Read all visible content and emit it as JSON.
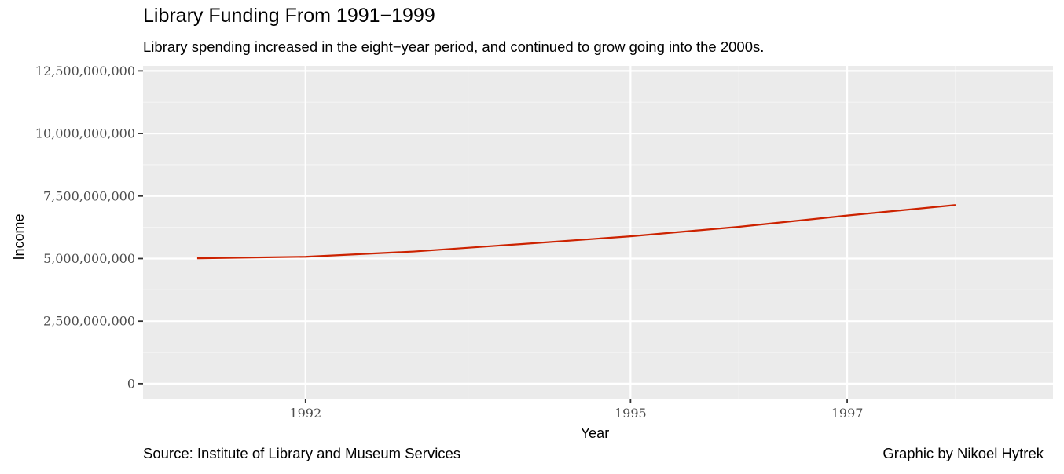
{
  "chart_data": {
    "type": "line",
    "title": "Library Funding From 1991−1999",
    "subtitle": "Library spending increased in the eight−year period, and continued to grow going into the 2000s.",
    "xlabel": "Year",
    "ylabel": "Income",
    "caption_left": "Source: Institute of Library and Museum Services",
    "caption_right": "Graphic by Nikoel Hytrek",
    "xlim": [
      1990.5,
      1998.9
    ],
    "ylim": [
      -600000000,
      12700000000
    ],
    "x_ticks": [
      {
        "value": 1992,
        "label": "1992"
      },
      {
        "value": 1995,
        "label": "1995"
      },
      {
        "value": 1997,
        "label": "1997"
      }
    ],
    "y_ticks": [
      {
        "value": 0,
        "label": "0"
      },
      {
        "value": 2500000000,
        "label": "2,500,000,000"
      },
      {
        "value": 5000000000,
        "label": "5,000,000,000"
      },
      {
        "value": 7500000000,
        "label": "7,500,000,000"
      },
      {
        "value": 10000000000,
        "label": "10,000,000,000"
      },
      {
        "value": 12500000000,
        "label": "12,500,000,000"
      }
    ],
    "series": [
      {
        "color": "#cc2200",
        "x": [
          1991,
          1992,
          1993,
          1994,
          1995,
          1996,
          1997,
          1998
        ],
        "values": [
          5010000000,
          5070000000,
          5280000000,
          5580000000,
          5890000000,
          6270000000,
          6720000000,
          7140000000
        ]
      }
    ],
    "panel_background": "#ebebeb",
    "grid": true,
    "legend": "none"
  }
}
